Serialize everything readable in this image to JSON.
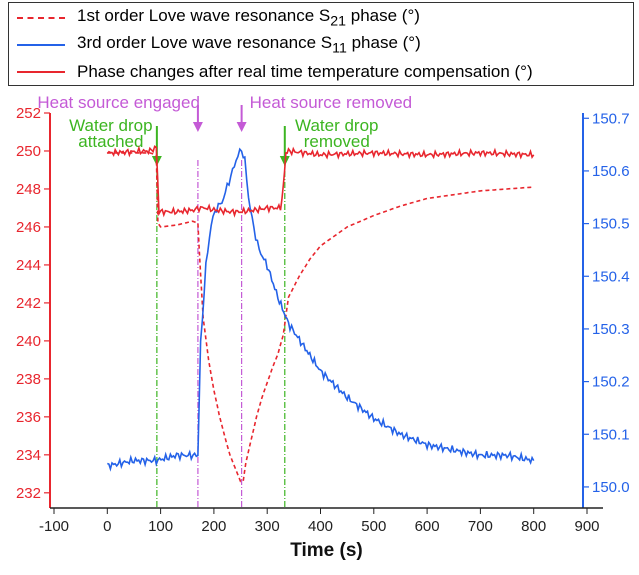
{
  "chart_data": {
    "type": "line",
    "xlabel": "Time (s)",
    "x_ticks": [
      -100,
      0,
      100,
      200,
      300,
      400,
      500,
      600,
      700,
      800,
      900
    ],
    "xlim": [
      -100,
      900
    ],
    "y_left": {
      "ticks": [
        232,
        234,
        236,
        238,
        240,
        242,
        244,
        246,
        248,
        250,
        252
      ],
      "ylim": [
        231.2,
        252.0
      ],
      "color": "#e8262e"
    },
    "y_right": {
      "ticks": [
        150.0,
        150.1,
        150.2,
        150.3,
        150.4,
        150.5,
        150.6,
        150.7
      ],
      "ylim": [
        149.96,
        150.71
      ],
      "color": "#2462e8"
    },
    "legend": [
      {
        "label_pre": "1st order Love wave resonance S",
        "sub": "21",
        "label_post": " phase (°)",
        "color": "#e8262e",
        "style": "dashed"
      },
      {
        "label_pre": "3rd order Love wave resonance S",
        "sub": "11",
        "label_post": " phase (°)",
        "color": "#2462e8",
        "style": "solid"
      },
      {
        "label_pre": "Phase changes after real time temperature compensation (°)",
        "sub": "",
        "label_post": "",
        "color": "#e8262e",
        "style": "solid"
      }
    ],
    "annotations": [
      {
        "text": "Heat source engaged",
        "x": 170,
        "color": "#c45ad6",
        "kind": "heat"
      },
      {
        "text": "Heat source removed",
        "x": 252,
        "color": "#c45ad6",
        "kind": "heat"
      },
      {
        "text_lines": [
          "Water drop",
          "attached"
        ],
        "x": 93,
        "color": "#3cb521",
        "kind": "water"
      },
      {
        "text_lines": [
          "Water drop",
          "removed"
        ],
        "x": 333,
        "color": "#3cb521",
        "kind": "water"
      }
    ],
    "series": [
      {
        "name": "1st order Love wave resonance S21 phase (°)",
        "axis": "left",
        "color": "#e8262e",
        "style": "dashed",
        "x": [
          0,
          80,
          92,
          95,
          100,
          130,
          160,
          170,
          175,
          180,
          190,
          200,
          210,
          220,
          230,
          240,
          250,
          255,
          260,
          270,
          280,
          290,
          300,
          310,
          320,
          330,
          340,
          360,
          380,
          400,
          450,
          500,
          550,
          600,
          650,
          700,
          750,
          800
        ],
        "y": [
          249.9,
          249.9,
          249.8,
          246.2,
          246.0,
          246.1,
          246.3,
          246.2,
          243.5,
          241.2,
          239.0,
          237.4,
          236.1,
          235.0,
          234.0,
          233.3,
          232.6,
          232.6,
          233.6,
          234.8,
          236.0,
          237.0,
          237.8,
          238.6,
          239.3,
          240.3,
          242.3,
          243.4,
          244.3,
          245.0,
          246.0,
          246.6,
          247.1,
          247.5,
          247.7,
          247.9,
          248.0,
          248.1
        ]
      },
      {
        "name": "3rd order Love wave resonance S11 phase (°)",
        "axis": "right",
        "color": "#2462e8",
        "style": "solid",
        "x": [
          0,
          50,
          92,
          130,
          170,
          175,
          185,
          195,
          205,
          215,
          225,
          235,
          245,
          252,
          258,
          265,
          275,
          285,
          300,
          320,
          340,
          360,
          380,
          400,
          450,
          500,
          550,
          600,
          650,
          700,
          750,
          800
        ],
        "y": [
          150.04,
          150.05,
          150.05,
          150.06,
          150.06,
          150.27,
          150.42,
          150.5,
          150.53,
          150.54,
          150.57,
          150.6,
          150.63,
          150.64,
          150.62,
          150.55,
          150.49,
          150.45,
          150.42,
          150.36,
          150.31,
          150.28,
          150.25,
          150.22,
          150.17,
          150.13,
          150.1,
          150.08,
          150.07,
          150.06,
          150.06,
          150.05
        ]
      },
      {
        "name": "Phase changes after real time temperature compensation (°)",
        "axis": "left",
        "color": "#e8262e",
        "style": "solid",
        "x": [
          0,
          80,
          92,
          97,
          130,
          165,
          172,
          185,
          200,
          230,
          250,
          280,
          300,
          325,
          330,
          335,
          340,
          400,
          500,
          600,
          700,
          800
        ],
        "y": [
          249.9,
          250.0,
          250.2,
          246.8,
          246.8,
          246.9,
          247.0,
          247.0,
          246.9,
          246.8,
          246.8,
          246.9,
          247.0,
          247.0,
          248.0,
          249.9,
          250.0,
          249.8,
          249.9,
          249.8,
          249.9,
          249.8
        ]
      }
    ]
  }
}
